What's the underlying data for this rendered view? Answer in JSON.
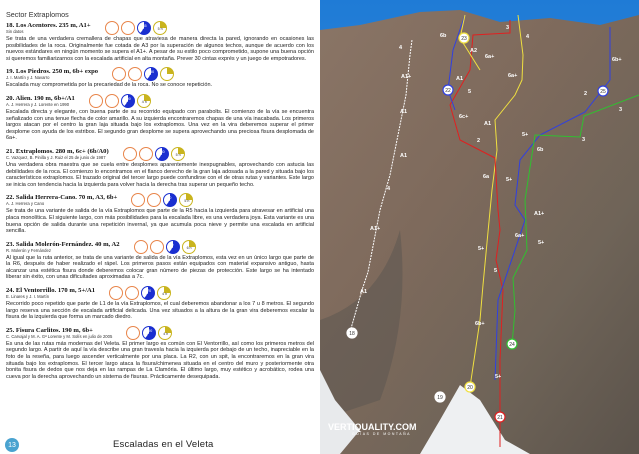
{
  "sector_title": "Sector Extraplomos",
  "routes": [
    {
      "title": "18. Los Acentores. 235 m, A1+",
      "authors": "Sin datos",
      "description": "Se trata de una verdadera cremallera de chapas que atraviesa de manera directa la pared, ignorando en ocasiones las posibilidades de la roca. Originalmente fue cotada de A3 por la superación de algunos techos, aunque de acuerdo con los nuevos estándares en ningún momento se supera el A1+. A pesar de su estilo poco comprometido, supone una buena opción si queremos familiarizarnos con la escalada artificial en alta montaña. Prever 30 cintas exprés y un juego de empotradores.",
      "icons": [
        "stirrups-icon",
        "bolt-icon"
      ],
      "length": "235",
      "time": "5 h"
    },
    {
      "title": "19. Los Piedros. 250 m, 6b+ expo",
      "authors": "J. I. Martín y J. Navarro",
      "description": "Escalada muy comprometida por la precariedad de la roca. No se conoce repetición.",
      "icons": [
        "bolt-icon",
        "pitons-icon"
      ],
      "length": "250",
      "time": ""
    },
    {
      "title": "20. Alien. 190 m, 6b+/A1",
      "authors": "A. J. Herrera y J. Lorente en 1990",
      "description": "Escalada directa y elegante, con buena parte de su recorrido equipado con parabolts. El comienzo de la vía se encuentra señalizado con una tenue flecha de color amarillo. A su izquierda encontraremos chapas de una vía inacabada. Los primeros largos atacan por el centro la gran laja situada bajo los extraplomos. Una vez en la vira deberemos superar el primer desplome con ayuda de los estribos. El segundo gran desplome se supera aprovechando una preciosa fisura desplomada de 6a+.",
      "icons": [
        "stirrups-icon",
        "bolt-icon"
      ],
      "length": "190",
      "time": "4 h"
    },
    {
      "title": "21. Extraplomos. 280 m, 6c+ (6b/A0)",
      "authors": "C. Vazquez, B. Pinilla y J. Ruiz el 25 de junio de 1987",
      "description": "Una verdadera obra maestra que se cuela entre desplomes aparentemente inexpugnables, aprovechando con astucia las debilidades de la roca. El comienzo lo encontramos en el flanco derecho de la gran laja adosada a la pared y situada bajo los característicos extraplomos. El trazado original del tercer largo puede confundirse con el de otras rutas y variantes. Este largo se inicia con tendencia hacia la izquierda para volver hacia la derecha tras superar un pequeño techo.",
      "icons": [
        "stirrups-icon",
        "bolt-icon"
      ],
      "length": "280",
      "time": "5 h"
    },
    {
      "title": "22. Salida Herrera-Cano. 70 m, A3, 6b+",
      "authors": "A. J. Herrera y Cano",
      "description": "Se trata de una variante de salida de la vía Extraplomos que parte de la R5 hacia la izquierda para atravesar en artificial una placa monolítica. El siguiente largo, con más posibilidades para la escalada libre, es una verdadera joya. Esta variante es una buena opción de salida durante una repetición invernal, ya que acumula poca nieve y permite una escalada en artificial sencilla.",
      "icons": [
        "stirrups-icon",
        "pitons-icon"
      ],
      "length": "70",
      "time": "5 h"
    },
    {
      "title": "23. Salida Molerón-Fernández. 40 m, A2",
      "authors": "R. Molerón y Fernández",
      "description": "Al igual que la ruta anterior, se trata de una variante de salida de la vía Extraplomos, esta vez en un único largo que parte de la R6, después de haber realizado el rápel. Los primeros pasos están equipados con material expansivo antiguo, hasta alcanzar una estética fisura donde deberemos colocar gran número de piezas de protección. Este largo se ha intentado liberar sin éxito, con unas dificultades aproximadas a 7c.",
      "icons": [
        "stirrups-icon",
        "pitons-icon"
      ],
      "length": "40",
      "time": "6 h"
    },
    {
      "title": "24. El Ventorrillo. 170 m, 5+/A1",
      "authors": "E. Linares y J. I. Martín",
      "description": "Recorrido poco repetido que parte de L1 de la vía Extraplomos, el cual deberemos abandonar a los 7 u 8 metros. El segundo largo reserva una sección de escalada artificial delicada. Una vez situados a la altura de la gran vira deberemos escalar la fisura de la izquierda que forma un marcado diedro.",
      "icons": [
        "bolt-icon",
        "pitons-icon"
      ],
      "length": "170",
      "time": "4 h"
    },
    {
      "title": "25. Fisura Carlitos. 190 m, 6b+",
      "authors": "C. Carvajal y M. A. Gª Lorente y M. Solís en julio de 2005",
      "description": "Es una de las rutas más modernas del Veleta. El primer largo es común con El Ventorrillo, así como los primeros metros del segundo largo. A partir de aquí la vía describe una gran travesía hacia la izquierda por debajo de un techo, inapreciable en la foto de la reseña, para luego ascender verticalmente por una placa. La R2, con un spit, la encontraremos en la gran vira situada bajo los extraplomos. El tercer largo ataca la fisura/chimenea situada en el centro del muro y posteriormente otra bonita fisura de dedos que nos deja en las rampas de La Clamória. El último largo, muy estético y acrobático, rodea una cueva por la derecha aprovechando un sistema de fisuras. Prácticamente desequipada.",
      "icons": [
        "pitons-icon"
      ],
      "length": "190",
      "time": "4 h"
    }
  ],
  "footer": {
    "page_number": "13",
    "title": "Escaladas en el Veleta"
  },
  "photo": {
    "logo_text": "VERTIQUALITY.COM",
    "logo_sub": "GUÍAS DE MONTAÑA",
    "route_colors": {
      "18": "#ffffff",
      "20": "#f0e040",
      "21": "#e02020",
      "22": "#3040e0",
      "24": "#30c030"
    },
    "route_numbers": [
      "18",
      "19",
      "20",
      "21",
      "22",
      "23",
      "24",
      "25"
    ],
    "grades": [
      "4",
      "A1+",
      "A1",
      "A1",
      "4",
      "A1+",
      "A1",
      "6b",
      "A2",
      "A1",
      "5",
      "6c+",
      "2",
      "3",
      "6a+",
      "4",
      "6a+",
      "A1",
      "6a",
      "5+",
      "5+",
      "6b",
      "6b+",
      "2",
      "3",
      "3",
      "A1+",
      "6a+",
      "5+",
      "5+",
      "5",
      "6b+",
      "5+"
    ]
  }
}
